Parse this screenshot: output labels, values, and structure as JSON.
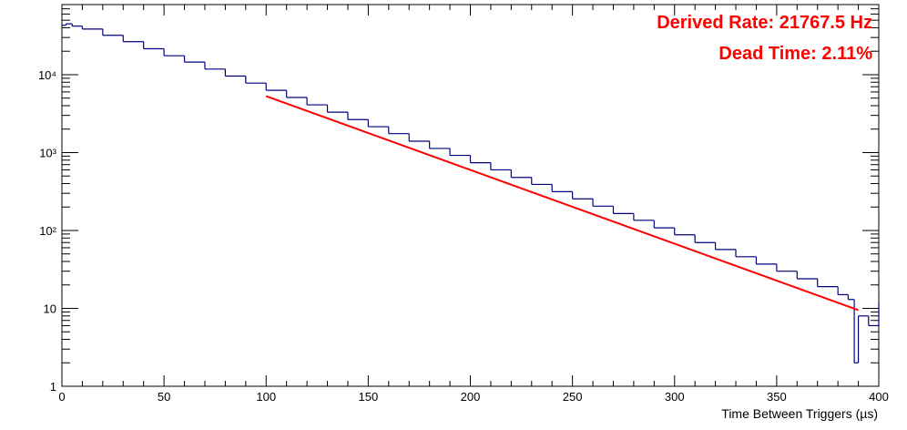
{
  "chart_data": {
    "type": "line",
    "title": "",
    "xlabel": "Time Between Triggers (µs)",
    "ylabel": "",
    "xlim": [
      0,
      400
    ],
    "ylim": [
      1,
      80000
    ],
    "log_y": true,
    "grid": false,
    "x_ticks": [
      0,
      50,
      100,
      150,
      200,
      250,
      300,
      350,
      400
    ],
    "x_tick_labels": [
      "0",
      "50",
      "100",
      "150",
      "200",
      "250",
      "300",
      "350",
      "400"
    ],
    "y_ticks": [
      1,
      10,
      100,
      1000,
      10000
    ],
    "y_tick_labels": [
      "1",
      "10",
      "10²",
      "10³",
      "10⁴"
    ],
    "series": [
      {
        "kind": "histogram",
        "color": "#000080",
        "x": [
          0,
          2,
          5,
          10,
          20,
          30,
          40,
          50,
          60,
          70,
          80,
          90,
          100,
          110,
          120,
          130,
          140,
          150,
          160,
          170,
          180,
          190,
          200,
          210,
          220,
          230,
          240,
          250,
          260,
          270,
          280,
          290,
          300,
          310,
          320,
          330,
          340,
          350,
          360,
          370,
          380,
          385,
          388,
          390,
          395,
          400
        ],
        "values": [
          43000,
          45000,
          42000,
          38500,
          32000,
          26500,
          21500,
          17500,
          14500,
          11800,
          9600,
          7800,
          6300,
          5100,
          4100,
          3300,
          2650,
          2150,
          1750,
          1400,
          1130,
          920,
          740,
          600,
          480,
          390,
          315,
          255,
          205,
          165,
          135,
          108,
          88,
          70,
          57,
          46,
          37,
          30,
          24,
          19,
          15,
          13,
          2,
          8,
          6,
          12
        ]
      },
      {
        "kind": "fit",
        "color": "#ff0000",
        "x": [
          100,
          390
        ],
        "values": [
          5300,
          9.5
        ]
      }
    ],
    "annotations": [
      "Derived Rate: 21767.5 Hz",
      "Dead Time: 2.11%"
    ]
  }
}
